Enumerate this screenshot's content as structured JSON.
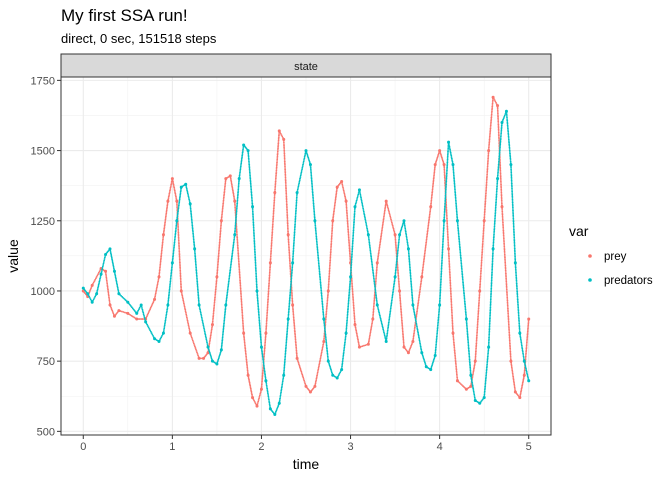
{
  "title": "My first SSA run!",
  "subtitle": "direct, 0 sec, 151518 steps",
  "colors": {
    "prey": "#F8766D",
    "predators": "#00BFC4"
  },
  "chart_data": {
    "type": "scatter",
    "title": "My first SSA run!",
    "subtitle": "direct, 0 sec, 151518 steps",
    "facet_label": "state",
    "xlabel": "time",
    "ylabel": "value",
    "xlim": [
      -0.25,
      5.25
    ],
    "ylim": [
      487,
      1762
    ],
    "x_ticks": [
      0,
      1,
      2,
      3,
      4,
      5
    ],
    "x_tick_labels": [
      "0",
      "1",
      "2",
      "3",
      "4",
      "5"
    ],
    "y_ticks": [
      500,
      750,
      1000,
      1250,
      1500,
      1750
    ],
    "y_tick_labels": [
      "500",
      "750",
      "1000",
      "1250",
      "1500",
      "1750"
    ],
    "grid": true,
    "legend": {
      "title": "var",
      "position": "right",
      "entries": [
        "prey",
        "predators"
      ]
    },
    "series": [
      {
        "name": "prey",
        "color": "#F8766D",
        "x": [
          0,
          0.05,
          0.1,
          0.2,
          0.25,
          0.3,
          0.35,
          0.4,
          0.5,
          0.6,
          0.7,
          0.8,
          0.85,
          0.9,
          0.95,
          1.0,
          1.05,
          1.1,
          1.2,
          1.3,
          1.35,
          1.4,
          1.45,
          1.5,
          1.55,
          1.6,
          1.65,
          1.7,
          1.8,
          1.85,
          1.9,
          1.95,
          2.0,
          2.05,
          2.1,
          2.15,
          2.2,
          2.25,
          2.3,
          2.35,
          2.4,
          2.5,
          2.55,
          2.6,
          2.7,
          2.75,
          2.8,
          2.85,
          2.9,
          2.95,
          3.0,
          3.05,
          3.1,
          3.2,
          3.25,
          3.3,
          3.4,
          3.5,
          3.55,
          3.6,
          3.65,
          3.7,
          3.8,
          3.9,
          3.95,
          4.0,
          4.05,
          4.1,
          4.15,
          4.2,
          4.3,
          4.35,
          4.4,
          4.45,
          4.5,
          4.55,
          4.6,
          4.65,
          4.7,
          4.8,
          4.85,
          4.9,
          4.95,
          5.0
        ],
        "y": [
          1000,
          980,
          1020,
          1080,
          1070,
          950,
          910,
          930,
          920,
          900,
          900,
          970,
          1050,
          1200,
          1320,
          1400,
          1320,
          1000,
          850,
          760,
          760,
          780,
          880,
          1050,
          1250,
          1400,
          1410,
          1320,
          850,
          700,
          620,
          590,
          650,
          850,
          1100,
          1350,
          1570,
          1540,
          1200,
          950,
          760,
          660,
          640,
          660,
          820,
          1000,
          1250,
          1370,
          1390,
          1320,
          1100,
          880,
          800,
          810,
          900,
          1100,
          1320,
          1200,
          1000,
          800,
          780,
          820,
          1050,
          1300,
          1450,
          1500,
          1450,
          1150,
          850,
          680,
          650,
          660,
          750,
          1000,
          1250,
          1500,
          1690,
          1660,
          1300,
          750,
          640,
          620,
          700,
          900
        ]
      },
      {
        "name": "predators",
        "color": "#00BFC4",
        "x": [
          0,
          0.05,
          0.1,
          0.15,
          0.2,
          0.25,
          0.3,
          0.35,
          0.4,
          0.5,
          0.6,
          0.65,
          0.7,
          0.8,
          0.85,
          0.9,
          0.95,
          1.0,
          1.05,
          1.1,
          1.15,
          1.2,
          1.25,
          1.3,
          1.4,
          1.45,
          1.5,
          1.55,
          1.6,
          1.7,
          1.75,
          1.8,
          1.85,
          1.9,
          1.95,
          2.0,
          2.05,
          2.1,
          2.15,
          2.2,
          2.25,
          2.3,
          2.35,
          2.4,
          2.5,
          2.55,
          2.6,
          2.7,
          2.75,
          2.8,
          2.85,
          2.9,
          2.95,
          3.0,
          3.05,
          3.1,
          3.2,
          3.3,
          3.4,
          3.5,
          3.55,
          3.6,
          3.65,
          3.7,
          3.8,
          3.85,
          3.9,
          3.95,
          4.0,
          4.05,
          4.1,
          4.15,
          4.2,
          4.3,
          4.35,
          4.4,
          4.45,
          4.5,
          4.55,
          4.6,
          4.65,
          4.7,
          4.75,
          4.8,
          4.85,
          4.9,
          4.95,
          5.0
        ],
        "y": [
          1010,
          990,
          960,
          990,
          1060,
          1130,
          1150,
          1070,
          990,
          960,
          920,
          950,
          890,
          830,
          820,
          850,
          950,
          1100,
          1250,
          1370,
          1380,
          1310,
          1150,
          950,
          800,
          750,
          740,
          790,
          950,
          1200,
          1400,
          1520,
          1500,
          1300,
          1000,
          800,
          680,
          580,
          560,
          600,
          700,
          900,
          1100,
          1350,
          1500,
          1450,
          1250,
          900,
          750,
          700,
          690,
          720,
          850,
          1050,
          1300,
          1360,
          1200,
          950,
          820,
          1050,
          1200,
          1250,
          1150,
          950,
          780,
          730,
          720,
          770,
          950,
          1250,
          1530,
          1450,
          1250,
          900,
          700,
          610,
          600,
          620,
          800,
          1150,
          1400,
          1600,
          1640,
          1450,
          1100,
          850,
          750,
          680
        ]
      }
    ]
  }
}
